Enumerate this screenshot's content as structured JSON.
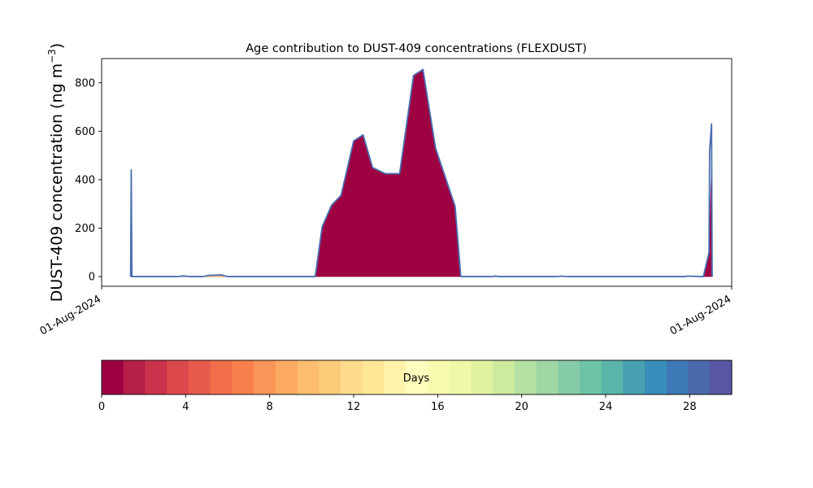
{
  "chart_data": {
    "type": "area",
    "title": "Age contribution to DUST-409 concentrations (FLEXDUST)",
    "ylabel_main": "DUST-409 concentration (ng m",
    "ylabel_sup": "−3",
    "ylabel_close": ")",
    "xlabel": "",
    "x_tick_labels": [
      "01-Aug-2024",
      "01-Aug-2024"
    ],
    "y_ticks": [
      0,
      200,
      400,
      600,
      800
    ],
    "xlim": [
      0,
      100
    ],
    "ylim": [
      -40,
      900
    ],
    "series": [
      {
        "color": "#9e0142",
        "x": [
          4.6,
          4.7,
          4.8,
          5.2,
          10,
          12,
          13,
          14,
          16,
          30,
          33.9,
          35,
          36.5,
          38,
          40,
          41.5,
          43,
          45,
          47.3,
          49.5,
          51,
          53,
          56.1,
          57,
          69,
          72,
          73,
          76,
          95.5,
          96.4,
          96.8,
          96.9
        ],
        "y": [
          0,
          270,
          0,
          0,
          0,
          0,
          0,
          0,
          0,
          0,
          0,
          205,
          295,
          335,
          560,
          585,
          450,
          425,
          425,
          830,
          855,
          530,
          290,
          0,
          0,
          0,
          0,
          0,
          0,
          100,
          460,
          0
        ]
      },
      {
        "color": "#fdae61",
        "x": [
          16,
          17,
          19,
          20
        ],
        "y": [
          0,
          5,
          5,
          0
        ]
      }
    ],
    "total": {
      "color": "#4a6fb0",
      "x": [
        4.6,
        4.7,
        4.8,
        5.2,
        10,
        12,
        13,
        14,
        16,
        17,
        19,
        20,
        21,
        30,
        33.9,
        35,
        36.5,
        38,
        40,
        41.5,
        43,
        45,
        47.3,
        49.5,
        51,
        53,
        56.1,
        57,
        62,
        62.5,
        63,
        72,
        73,
        74,
        76,
        92.5,
        93,
        95.5,
        96.4,
        96.5,
        96.8,
        96.9
      ],
      "y": [
        0,
        440,
        0,
        0,
        0,
        0,
        3,
        0,
        0,
        5,
        7,
        0,
        0,
        0,
        0,
        205,
        295,
        335,
        560,
        585,
        450,
        425,
        425,
        830,
        855,
        530,
        290,
        0,
        0,
        3,
        0,
        0,
        2,
        0,
        0,
        0,
        2,
        0,
        100,
        520,
        630,
        0
      ]
    },
    "colorbar": {
      "label": "Days",
      "range": [
        0,
        30
      ],
      "ticks": [
        0,
        4,
        8,
        12,
        16,
        20,
        24,
        28
      ],
      "colors": [
        "#9e0142",
        "#b51f48",
        "#cb334c",
        "#dc494c",
        "#e65a4b",
        "#f06e4a",
        "#f67f4b",
        "#f99557",
        "#fca961",
        "#fdbd6f",
        "#fdcc7a",
        "#fedc8c",
        "#fee796",
        "#fff2aa",
        "#fffebe",
        "#f7fbb0",
        "#eff8a6",
        "#e0f2a0",
        "#cdeb9d",
        "#b5e1a2",
        "#9ed7a4",
        "#85cba7",
        "#6ec3a5",
        "#59b4aa",
        "#46a0b1",
        "#378ebb",
        "#3d79b6",
        "#4b69ad",
        "#5a56a4"
      ]
    }
  }
}
